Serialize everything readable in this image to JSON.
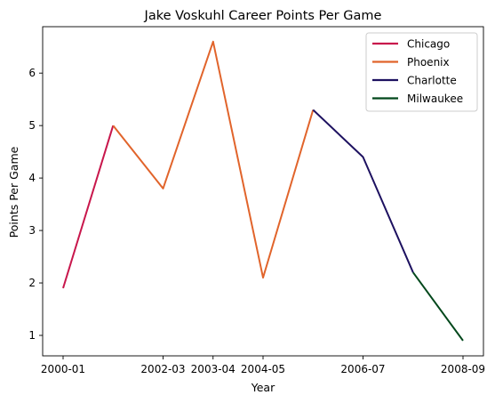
{
  "chart_data": {
    "type": "line",
    "title": "Jake Voskuhl Career Points Per Game",
    "xlabel": "Year",
    "ylabel": "Points Per Game",
    "x": [
      "2000-01",
      "2001-02",
      "2002-03",
      "2003-04",
      "2004-05",
      "2005-06",
      "2006-07",
      "2007-08",
      "2008-09"
    ],
    "x_ticks": [
      "2000-01",
      "2002-03",
      "2003-04",
      "2004-05",
      "2006-07",
      "2008-09"
    ],
    "y_ticks": [
      "1",
      "2",
      "3",
      "4",
      "5",
      "6"
    ],
    "ylim": [
      0.61,
      6.885
    ],
    "series": [
      {
        "name": "Chicago",
        "color": "#c8174c",
        "points": [
          {
            "x": "2000-01",
            "y": 1.9
          },
          {
            "x": "2001-02",
            "y": 5.0
          }
        ]
      },
      {
        "name": "Phoenix",
        "color": "#e1642b",
        "points": [
          {
            "x": "2001-02",
            "y": 5.0
          },
          {
            "x": "2002-03",
            "y": 3.8
          },
          {
            "x": "2003-04",
            "y": 6.6
          },
          {
            "x": "2004-05",
            "y": 2.1
          },
          {
            "x": "2005-06",
            "y": 5.3
          }
        ]
      },
      {
        "name": "Charlotte",
        "color": "#1d1160",
        "points": [
          {
            "x": "2005-06",
            "y": 5.3
          },
          {
            "x": "2006-07",
            "y": 4.4
          },
          {
            "x": "2007-08",
            "y": 2.2
          }
        ]
      },
      {
        "name": "Milwaukee",
        "color": "#00471b",
        "points": [
          {
            "x": "2007-08",
            "y": 2.2
          },
          {
            "x": "2008-09",
            "y": 0.9
          }
        ]
      }
    ],
    "grid": false,
    "legend_position": "top-right"
  }
}
